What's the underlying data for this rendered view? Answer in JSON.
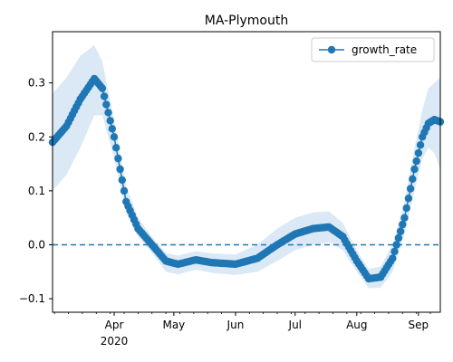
{
  "chart_data": {
    "type": "line",
    "title": "MA-Plymouth",
    "xlabel": "",
    "ylabel": "",
    "x_range": [
      "2020-03-01",
      "2020-09-12"
    ],
    "ylim": [
      -0.125,
      0.395
    ],
    "grid": false,
    "legend": {
      "placement": "top-right",
      "entries": [
        "growth_rate"
      ]
    },
    "x_ticks": [
      {
        "date": "2020-04-01",
        "label": "Apr",
        "sublabel": "2020"
      },
      {
        "date": "2020-05-01",
        "label": "May",
        "sublabel": ""
      },
      {
        "date": "2020-06-01",
        "label": "Jun",
        "sublabel": ""
      },
      {
        "date": "2020-07-01",
        "label": "Jul",
        "sublabel": ""
      },
      {
        "date": "2020-08-01",
        "label": "Aug",
        "sublabel": ""
      },
      {
        "date": "2020-09-01",
        "label": "Sep",
        "sublabel": ""
      }
    ],
    "y_ticks": [
      {
        "value": -0.1,
        "label": "−0.1"
      },
      {
        "value": 0.0,
        "label": "0.0"
      },
      {
        "value": 0.1,
        "label": "0.1"
      },
      {
        "value": 0.2,
        "label": "0.2"
      },
      {
        "value": 0.3,
        "label": "0.3"
      }
    ],
    "reference_line": {
      "y": 0.0,
      "style": "dashed"
    },
    "series": [
      {
        "name": "growth_rate",
        "color": "#1f77b4",
        "band_color": "#dbe9f6",
        "knots": [
          [
            "2020-03-01",
            0.19,
            0.1,
            0.28
          ],
          [
            "2020-03-08",
            0.22,
            0.13,
            0.31
          ],
          [
            "2020-03-15",
            0.27,
            0.18,
            0.35
          ],
          [
            "2020-03-22",
            0.308,
            0.24,
            0.37
          ],
          [
            "2020-03-26",
            0.29,
            0.24,
            0.34
          ],
          [
            "2020-04-01",
            0.2,
            0.16,
            0.23
          ],
          [
            "2020-04-07",
            0.08,
            0.06,
            0.11
          ],
          [
            "2020-04-13",
            0.03,
            0.015,
            0.05
          ],
          [
            "2020-04-20",
            0.0,
            -0.015,
            0.015
          ],
          [
            "2020-04-27",
            -0.03,
            -0.05,
            -0.015
          ],
          [
            "2020-05-03",
            -0.036,
            -0.055,
            -0.02
          ],
          [
            "2020-05-12",
            -0.028,
            -0.046,
            -0.012
          ],
          [
            "2020-05-20",
            -0.033,
            -0.052,
            -0.016
          ],
          [
            "2020-06-01",
            -0.036,
            -0.056,
            -0.018
          ],
          [
            "2020-06-12",
            -0.025,
            -0.05,
            0.0
          ],
          [
            "2020-06-22",
            0.0,
            -0.03,
            0.03
          ],
          [
            "2020-07-01",
            0.02,
            -0.01,
            0.05
          ],
          [
            "2020-07-10",
            0.03,
            0.0,
            0.06
          ],
          [
            "2020-07-18",
            0.033,
            0.005,
            0.062
          ],
          [
            "2020-07-25",
            0.015,
            -0.01,
            0.04
          ],
          [
            "2020-08-01",
            -0.03,
            -0.05,
            -0.01
          ],
          [
            "2020-08-07",
            -0.063,
            -0.08,
            -0.045
          ],
          [
            "2020-08-13",
            -0.06,
            -0.08,
            -0.04
          ],
          [
            "2020-08-19",
            -0.025,
            -0.05,
            0.0
          ],
          [
            "2020-08-25",
            0.05,
            0.02,
            0.08
          ],
          [
            "2020-08-30",
            0.14,
            0.1,
            0.18
          ],
          [
            "2020-09-03",
            0.2,
            0.16,
            0.25
          ],
          [
            "2020-09-06",
            0.225,
            0.18,
            0.29
          ],
          [
            "2020-09-09",
            0.232,
            0.17,
            0.3
          ],
          [
            "2020-09-12",
            0.228,
            0.14,
            0.31
          ]
        ]
      }
    ]
  }
}
